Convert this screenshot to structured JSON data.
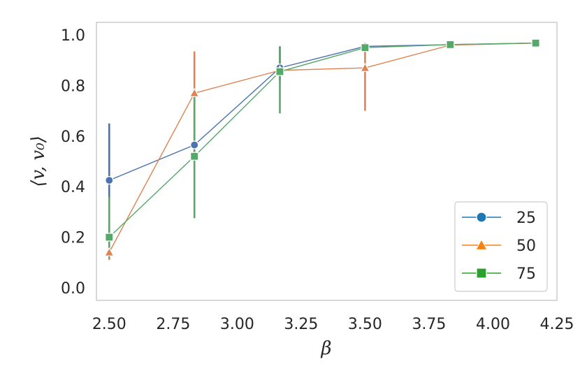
{
  "chart_data": {
    "type": "line",
    "xlabel": "β",
    "ylabel": "⟨v, v₀⟩",
    "xlim": [
      2.45,
      4.25
    ],
    "ylim": [
      -0.05,
      1.05
    ],
    "xticks": [
      "2.50",
      "2.75",
      "3.00",
      "3.25",
      "3.50",
      "3.75",
      "4.00",
      "4.25"
    ],
    "yticks": [
      "0.0",
      "0.2",
      "0.4",
      "0.6",
      "0.8",
      "1.0"
    ],
    "grid": false,
    "legend_position": "lower-right",
    "series": [
      {
        "name": "25",
        "color": "#4c72b0",
        "legend_color": "#1f77b4",
        "marker": "circle",
        "x": [
          2.5,
          2.833,
          3.167,
          3.5,
          3.833,
          4.167
        ],
        "y": [
          0.425,
          0.565,
          0.87,
          0.955,
          0.962,
          0.968
        ],
        "err_low": [
          0.355,
          0.53,
          0.82,
          0.95,
          0.958,
          0.966
        ],
        "err_high": [
          0.65,
          0.6,
          0.955,
          0.96,
          0.966,
          0.97
        ]
      },
      {
        "name": "50",
        "color": "#dd8452",
        "legend_color": "#ff7f0e",
        "marker": "triangle",
        "x": [
          2.5,
          2.833,
          3.167,
          3.5,
          3.833,
          4.167
        ],
        "y": [
          0.14,
          0.77,
          0.86,
          0.87,
          0.96,
          0.968
        ],
        "err_low": [
          0.11,
          0.6,
          0.82,
          0.7,
          0.955,
          0.965
        ],
        "err_high": [
          0.165,
          0.935,
          0.95,
          0.955,
          0.965,
          0.97
        ]
      },
      {
        "name": "75",
        "color": "#55a868",
        "legend_color": "#2ca02c",
        "marker": "square",
        "x": [
          2.5,
          2.833,
          3.167,
          3.5,
          3.833,
          4.167
        ],
        "y": [
          0.2,
          0.52,
          0.855,
          0.95,
          0.962,
          0.968
        ],
        "err_low": [
          0.12,
          0.275,
          0.69,
          0.945,
          0.958,
          0.966
        ],
        "err_high": [
          0.36,
          0.755,
          0.95,
          0.955,
          0.966,
          0.97
        ]
      }
    ]
  }
}
